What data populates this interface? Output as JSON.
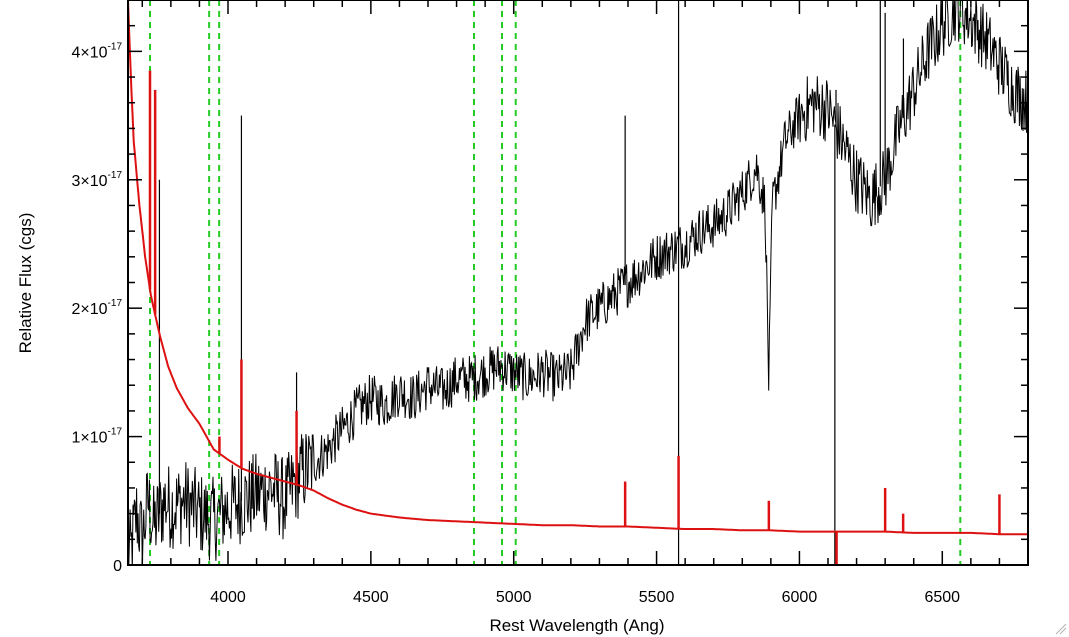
{
  "chart_data": {
    "type": "line",
    "title": "",
    "xlabel": "Rest Wavelength (Ang)",
    "ylabel": "Relative Flux (cgs)",
    "xlim": [
      3650,
      6800
    ],
    "ylim": [
      0,
      4.4e-17
    ],
    "x_ticks": [
      {
        "value": 4000,
        "label": "4000"
      },
      {
        "value": 4500,
        "label": "4500"
      },
      {
        "value": 5000,
        "label": "5000"
      },
      {
        "value": 5500,
        "label": "5500"
      },
      {
        "value": 6000,
        "label": "6000"
      },
      {
        "value": 6500,
        "label": "6500"
      }
    ],
    "y_ticks": [
      {
        "value": 0,
        "label": "0",
        "exp": ""
      },
      {
        "value": 1e-17,
        "label": "1×10",
        "exp": "-17"
      },
      {
        "value": 2e-17,
        "label": "2×10",
        "exp": "-17"
      },
      {
        "value": 3e-17,
        "label": "3×10",
        "exp": "-17"
      },
      {
        "value": 4e-17,
        "label": "4×10",
        "exp": "-17"
      }
    ],
    "reference_lines": {
      "color": "#22cc22",
      "style": "dashed",
      "x": [
        3727,
        3934,
        3969,
        4861,
        4959,
        5007,
        6563
      ]
    },
    "series": [
      {
        "color": "#000000",
        "description": "observed spectrum",
        "noise": 1.2e-18,
        "points": [
          [
            3660,
            1e-18
          ],
          [
            3680,
            4e-18
          ],
          [
            3700,
            2e-18
          ],
          [
            3720,
            5e-18
          ],
          [
            3740,
            3e-18
          ],
          [
            3760,
            4e-18
          ],
          [
            3780,
            5e-18
          ],
          [
            3800,
            4.5e-18
          ],
          [
            3850,
            5e-18
          ],
          [
            3900,
            4e-18
          ],
          [
            3950,
            3.5e-18
          ],
          [
            4000,
            4.5e-18
          ],
          [
            4050,
            5e-18
          ],
          [
            4100,
            5.5e-18
          ],
          [
            4150,
            6e-18
          ],
          [
            4200,
            5e-18
          ],
          [
            4250,
            7e-18
          ],
          [
            4300,
            8e-18
          ],
          [
            4350,
            9e-18
          ],
          [
            4400,
            1.05e-17
          ],
          [
            4450,
            1.2e-17
          ],
          [
            4500,
            1.3e-17
          ],
          [
            4550,
            1.25e-17
          ],
          [
            4600,
            1.35e-17
          ],
          [
            4650,
            1.3e-17
          ],
          [
            4700,
            1.4e-17
          ],
          [
            4750,
            1.35e-17
          ],
          [
            4800,
            1.45e-17
          ],
          [
            4850,
            1.45e-17
          ],
          [
            4900,
            1.5e-17
          ],
          [
            4950,
            1.55e-17
          ],
          [
            5000,
            1.5e-17
          ],
          [
            5050,
            1.45e-17
          ],
          [
            5100,
            1.5e-17
          ],
          [
            5150,
            1.45e-17
          ],
          [
            5200,
            1.5e-17
          ],
          [
            5250,
            1.9e-17
          ],
          [
            5300,
            2e-17
          ],
          [
            5350,
            2.1e-17
          ],
          [
            5400,
            2.2e-17
          ],
          [
            5450,
            2.3e-17
          ],
          [
            5500,
            2.4e-17
          ],
          [
            5550,
            2.45e-17
          ],
          [
            5600,
            2.5e-17
          ],
          [
            5650,
            2.6e-17
          ],
          [
            5700,
            2.65e-17
          ],
          [
            5750,
            2.75e-17
          ],
          [
            5800,
            2.9e-17
          ],
          [
            5850,
            3.1e-17
          ],
          [
            5880,
            2.8e-17
          ],
          [
            5893,
            1.4e-17
          ],
          [
            5905,
            2.8e-17
          ],
          [
            5950,
            3.3e-17
          ],
          [
            6000,
            3.5e-17
          ],
          [
            6050,
            3.6e-17
          ],
          [
            6100,
            3.55e-17
          ],
          [
            6150,
            3.3e-17
          ],
          [
            6200,
            3e-17
          ],
          [
            6250,
            2.85e-17
          ],
          [
            6300,
            3e-17
          ],
          [
            6350,
            3.4e-17
          ],
          [
            6400,
            3.7e-17
          ],
          [
            6450,
            4e-17
          ],
          [
            6500,
            4.2e-17
          ],
          [
            6550,
            4.35e-17
          ],
          [
            6600,
            4.25e-17
          ],
          [
            6650,
            4.1e-17
          ],
          [
            6700,
            3.9e-17
          ],
          [
            6750,
            3.7e-17
          ],
          [
            6800,
            3.6e-17
          ]
        ],
        "spikes": [
          [
            3760,
            3e-17
          ],
          [
            4047,
            3.5e-17
          ],
          [
            4240,
            1.5e-17
          ],
          [
            5390,
            3.5e-17
          ],
          [
            5577,
            4.4e-17
          ],
          [
            5577,
            -5e-18
          ],
          [
            6124,
            -5e-18
          ],
          [
            6128,
            3.7e-17
          ],
          [
            6283,
            4.4e-17
          ],
          [
            6300,
            4.3e-17
          ],
          [
            6364,
            4.1e-17
          ]
        ]
      },
      {
        "color": "#dd1111",
        "description": "model spectrum",
        "points": [
          [
            3650,
            4.4e-17
          ],
          [
            3660,
            3.8e-17
          ],
          [
            3670,
            3.3e-17
          ],
          [
            3690,
            2.8e-17
          ],
          [
            3710,
            2.4e-17
          ],
          [
            3730,
            2.1e-17
          ],
          [
            3760,
            1.8e-17
          ],
          [
            3790,
            1.55e-17
          ],
          [
            3820,
            1.38e-17
          ],
          [
            3860,
            1.22e-17
          ],
          [
            3900,
            1.1e-17
          ],
          [
            3950,
            9e-18
          ],
          [
            4000,
            8.2e-18
          ],
          [
            4050,
            7.5e-18
          ],
          [
            4100,
            7.1e-18
          ],
          [
            4150,
            6.8e-18
          ],
          [
            4200,
            6.5e-18
          ],
          [
            4250,
            6.2e-18
          ],
          [
            4300,
            5.8e-18
          ],
          [
            4350,
            5.2e-18
          ],
          [
            4400,
            4.7e-18
          ],
          [
            4450,
            4.3e-18
          ],
          [
            4500,
            4e-18
          ],
          [
            4600,
            3.7e-18
          ],
          [
            4700,
            3.5e-18
          ],
          [
            4800,
            3.4e-18
          ],
          [
            4900,
            3.3e-18
          ],
          [
            5000,
            3.2e-18
          ],
          [
            5100,
            3.1e-18
          ],
          [
            5200,
            3.1e-18
          ],
          [
            5300,
            3e-18
          ],
          [
            5400,
            3e-18
          ],
          [
            5500,
            2.9e-18
          ],
          [
            5600,
            2.8e-18
          ],
          [
            5700,
            2.8e-18
          ],
          [
            5800,
            2.7e-18
          ],
          [
            5900,
            2.7e-18
          ],
          [
            6000,
            2.6e-18
          ],
          [
            6100,
            2.6e-18
          ],
          [
            6200,
            2.6e-18
          ],
          [
            6300,
            2.6e-18
          ],
          [
            6400,
            2.5e-18
          ],
          [
            6500,
            2.5e-18
          ],
          [
            6600,
            2.5e-18
          ],
          [
            6700,
            2.4e-18
          ],
          [
            6800,
            2.4e-18
          ]
        ],
        "spikes": [
          [
            3727,
            3.85e-17
          ],
          [
            3745,
            3.7e-17
          ],
          [
            3970,
            1e-17
          ],
          [
            4047,
            1.6e-17
          ],
          [
            4240,
            1.2e-17
          ],
          [
            5390,
            6.5e-18
          ],
          [
            5577,
            8.5e-18
          ],
          [
            5893,
            5e-18
          ],
          [
            6130,
            -3e-18
          ],
          [
            6300,
            6e-18
          ],
          [
            6363,
            4e-18
          ],
          [
            6700,
            5.5e-18
          ]
        ]
      }
    ]
  }
}
